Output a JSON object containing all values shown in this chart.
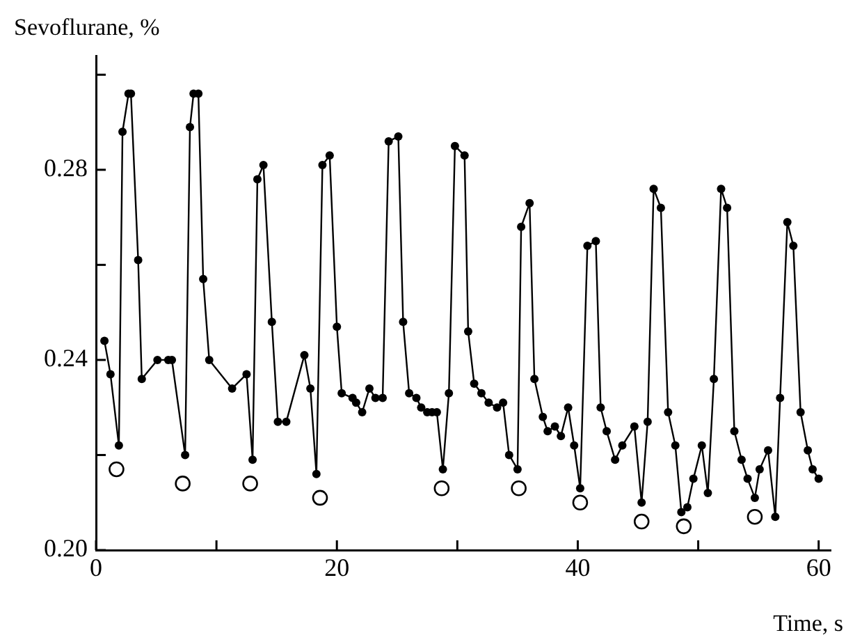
{
  "chart_data": {
    "type": "line",
    "xlabel": "Time, s",
    "ylabel": "Sevoflurane, %",
    "xlim": [
      0,
      61
    ],
    "ylim": [
      0.2,
      0.304
    ],
    "xticks": [
      0,
      {
        "value": 10,
        "label": null
      },
      20,
      {
        "value": 30,
        "label": null
      },
      40,
      {
        "value": 50,
        "label": null
      },
      60
    ],
    "yticks": [
      {
        "value": 0.2,
        "label": "0.20"
      },
      {
        "value": 0.22,
        "label": null
      },
      {
        "value": 0.24,
        "label": "0.24"
      },
      {
        "value": 0.26,
        "label": null
      },
      {
        "value": 0.28,
        "label": "0.28"
      },
      {
        "value": 0.3,
        "label": null
      }
    ],
    "grid": false,
    "legend": false,
    "marker": "circle",
    "line_style": "solid",
    "series": [
      {
        "type": "line",
        "color": "#000000",
        "x": [
          0.7,
          1.2,
          1.9,
          2.2,
          2.7,
          2.9,
          3.5,
          3.8,
          5.1,
          6.0,
          6.3,
          7.4,
          7.8,
          8.1,
          8.5,
          8.9,
          9.4,
          11.3,
          12.5,
          13.0,
          13.4,
          13.9,
          14.6,
          15.1,
          15.8,
          17.3,
          17.8,
          18.3,
          18.8,
          19.4,
          20.0,
          20.4,
          21.3,
          21.6,
          22.1,
          22.7,
          23.2,
          23.8,
          24.3,
          25.1,
          25.5,
          26.0,
          26.6,
          27.0,
          27.5,
          27.9,
          28.3,
          28.8,
          29.3,
          29.8,
          30.6,
          30.9,
          31.4,
          32.0,
          32.6,
          33.3,
          33.8,
          34.3,
          35.0,
          35.3,
          36.0,
          36.4,
          37.1,
          37.5,
          38.1,
          38.6,
          39.2,
          39.7,
          40.2,
          40.8,
          41.5,
          41.9,
          42.4,
          43.1,
          43.7,
          44.7,
          45.3,
          45.8,
          46.3,
          46.9,
          47.5,
          48.1,
          48.6,
          49.1,
          49.6,
          50.3,
          50.8,
          51.3,
          51.9,
          52.4,
          53.0,
          53.6,
          54.1,
          54.7,
          55.1,
          55.8,
          56.4,
          56.8,
          57.4,
          57.9,
          58.5,
          59.1,
          59.5,
          60.0
        ],
        "values": [
          0.244,
          0.237,
          0.222,
          0.288,
          0.296,
          0.296,
          0.261,
          0.236,
          0.24,
          0.24,
          0.24,
          0.22,
          0.289,
          0.296,
          0.296,
          0.257,
          0.24,
          0.234,
          0.237,
          0.219,
          0.278,
          0.281,
          0.248,
          0.227,
          0.227,
          0.241,
          0.234,
          0.216,
          0.281,
          0.283,
          0.247,
          0.233,
          0.232,
          0.231,
          0.229,
          0.234,
          0.232,
          0.232,
          0.286,
          0.287,
          0.248,
          0.233,
          0.232,
          0.23,
          0.229,
          0.229,
          0.229,
          0.217,
          0.233,
          0.285,
          0.283,
          0.246,
          0.235,
          0.233,
          0.231,
          0.23,
          0.231,
          0.22,
          0.217,
          0.268,
          0.273,
          0.236,
          0.228,
          0.225,
          0.226,
          0.224,
          0.23,
          0.222,
          0.213,
          0.264,
          0.265,
          0.23,
          0.225,
          0.219,
          0.222,
          0.226,
          0.21,
          0.227,
          0.276,
          0.272,
          0.229,
          0.222,
          0.208,
          0.209,
          0.215,
          0.222,
          0.212,
          0.236,
          0.276,
          0.272,
          0.225,
          0.219,
          0.215,
          0.211,
          0.217,
          0.221,
          0.207,
          0.232,
          0.269,
          0.264,
          0.229,
          0.221,
          0.217,
          0.215
        ]
      },
      {
        "type": "scatter",
        "color": "#000000",
        "x": [
          1.7,
          7.2,
          12.8,
          18.6,
          28.7,
          35.1,
          40.2,
          45.3,
          48.8,
          54.7
        ],
        "values": [
          0.217,
          0.214,
          0.214,
          0.211,
          0.213,
          0.213,
          0.21,
          0.206,
          0.205,
          0.207
        ]
      }
    ]
  }
}
